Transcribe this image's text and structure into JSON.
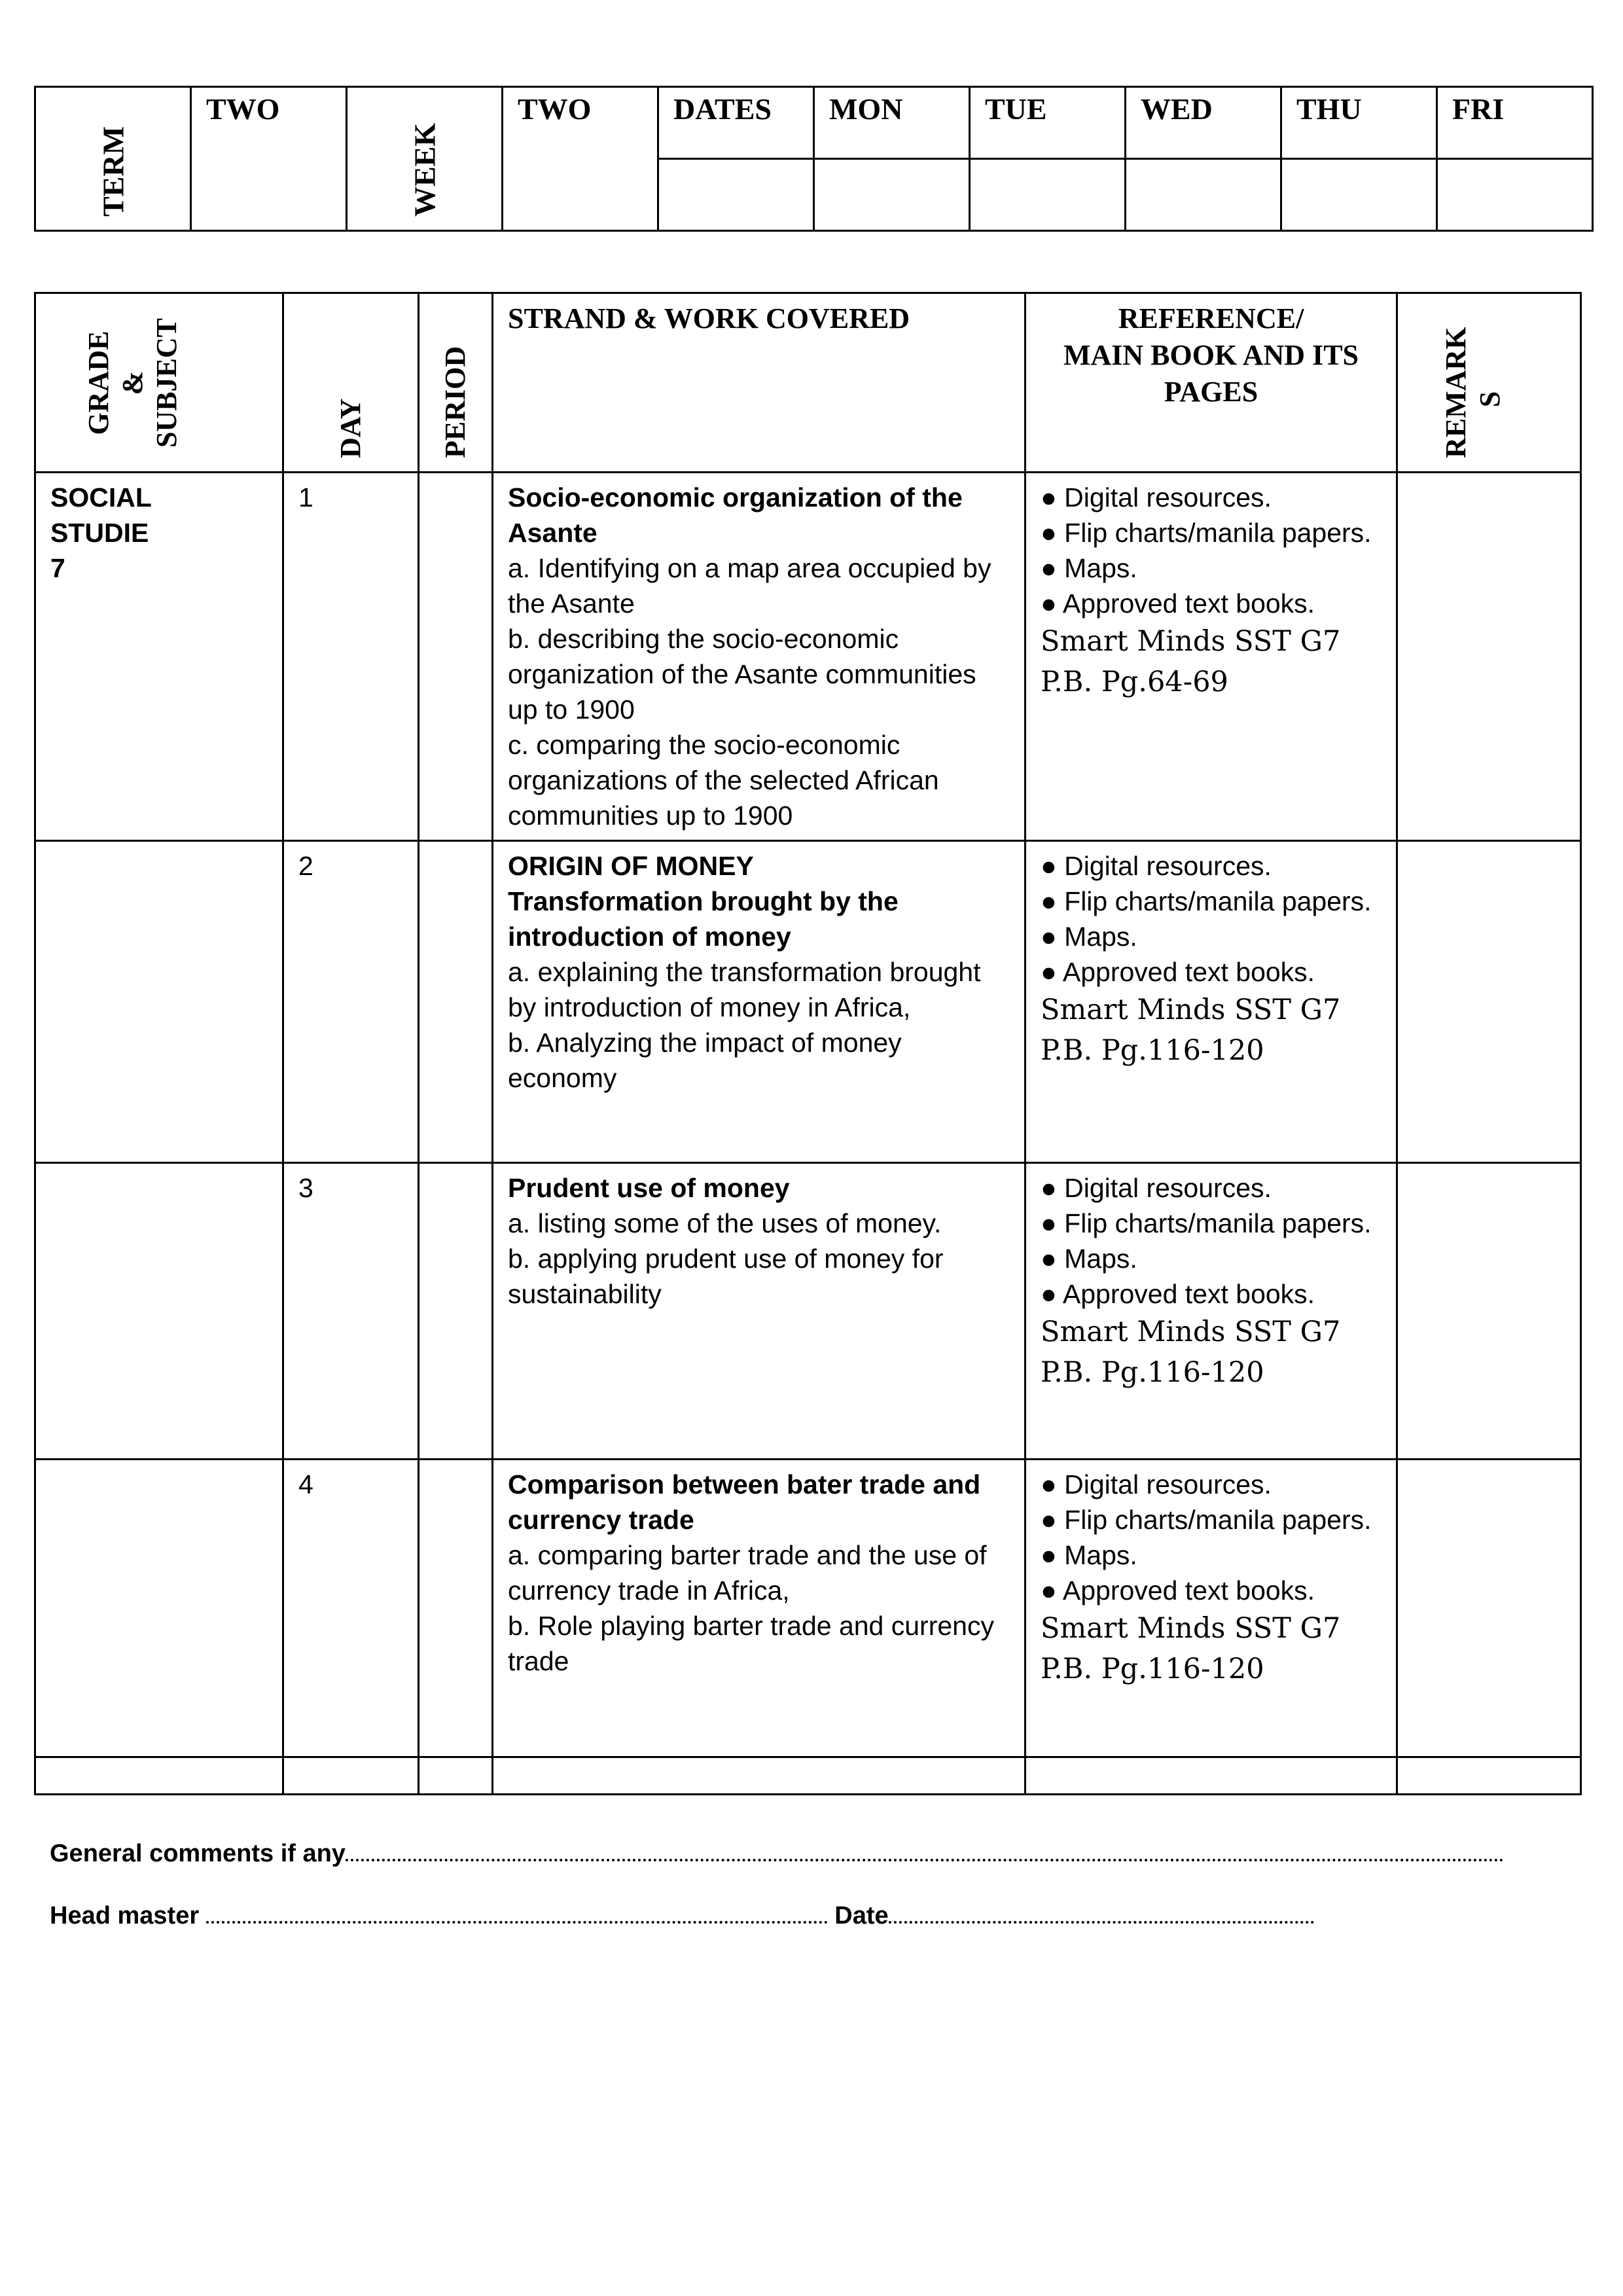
{
  "header_table": {
    "term_label": "TERM",
    "term_value": "TWO",
    "week_label": "WEEK",
    "week_value": "TWO",
    "dates_label": "DATES",
    "days": [
      "MON",
      "TUE",
      "WED",
      "THU",
      "FRI"
    ]
  },
  "main_table": {
    "headers": {
      "grade_subject": "GRADE\n&\nSUBJECT",
      "day": "DAY",
      "period": "PERIOD",
      "strand": "STRAND & WORK COVERED",
      "reference": "REFERENCE/\nMAIN BOOK AND ITS PAGES",
      "remarks": "REMARK\nS"
    },
    "grade_subject": [
      "SOCIAL",
      "STUDIE",
      "7"
    ],
    "rows": [
      {
        "day": "1",
        "title": [
          "Socio-economic organization of the Asante"
        ],
        "lines": [
          "a. Identifying on a map area occupied by the Asante",
          "b. describing the socio-economic organization of the Asante communities up to 1900",
          "c. comparing the socio-economic organizations of the selected African communities up to 1900"
        ],
        "resources": [
          "● Digital resources.",
          "● Flip charts/manila papers.",
          "● Maps.",
          "● Approved text books."
        ],
        "book": "Smart Minds SST G7",
        "pages": "P.B. Pg.64-69"
      },
      {
        "day": "2",
        "title": [
          "ORIGIN OF MONEY",
          "Transformation brought by the introduction of money"
        ],
        "lines": [
          "a. explaining the transformation brought by introduction of money in Africa,",
          "b. Analyzing the impact of money economy"
        ],
        "resources": [
          "● Digital resources.",
          "● Flip charts/manila papers.",
          "● Maps.",
          "● Approved text books."
        ],
        "book": "Smart Minds SST G7",
        "pages": "P.B. Pg.116-120"
      },
      {
        "day": "3",
        "title": [
          "Prudent use of money"
        ],
        "lines": [
          "a. listing some of the uses of money.",
          "b. applying prudent use of money for sustainability"
        ],
        "resources": [
          "● Digital resources.",
          "● Flip charts/manila papers.",
          "● Maps.",
          "● Approved text books."
        ],
        "book": "Smart Minds SST G7",
        "pages": "P.B. Pg.116-120"
      },
      {
        "day": "4",
        "title": [
          "Comparison between bater trade and currency trade"
        ],
        "lines": [
          "a. comparing barter trade and the use of currency trade in Africa,",
          "b. Role playing barter trade and currency trade"
        ],
        "resources": [
          "● Digital resources.",
          "● Flip charts/manila papers.",
          "● Maps.",
          "● Approved text books."
        ],
        "book": "Smart Minds SST G7",
        "pages": "P.B. Pg.116-120"
      }
    ]
  },
  "footer": {
    "comments_label": "General comments if any",
    "headmaster_label": "Head master",
    "date_label": "Date"
  }
}
